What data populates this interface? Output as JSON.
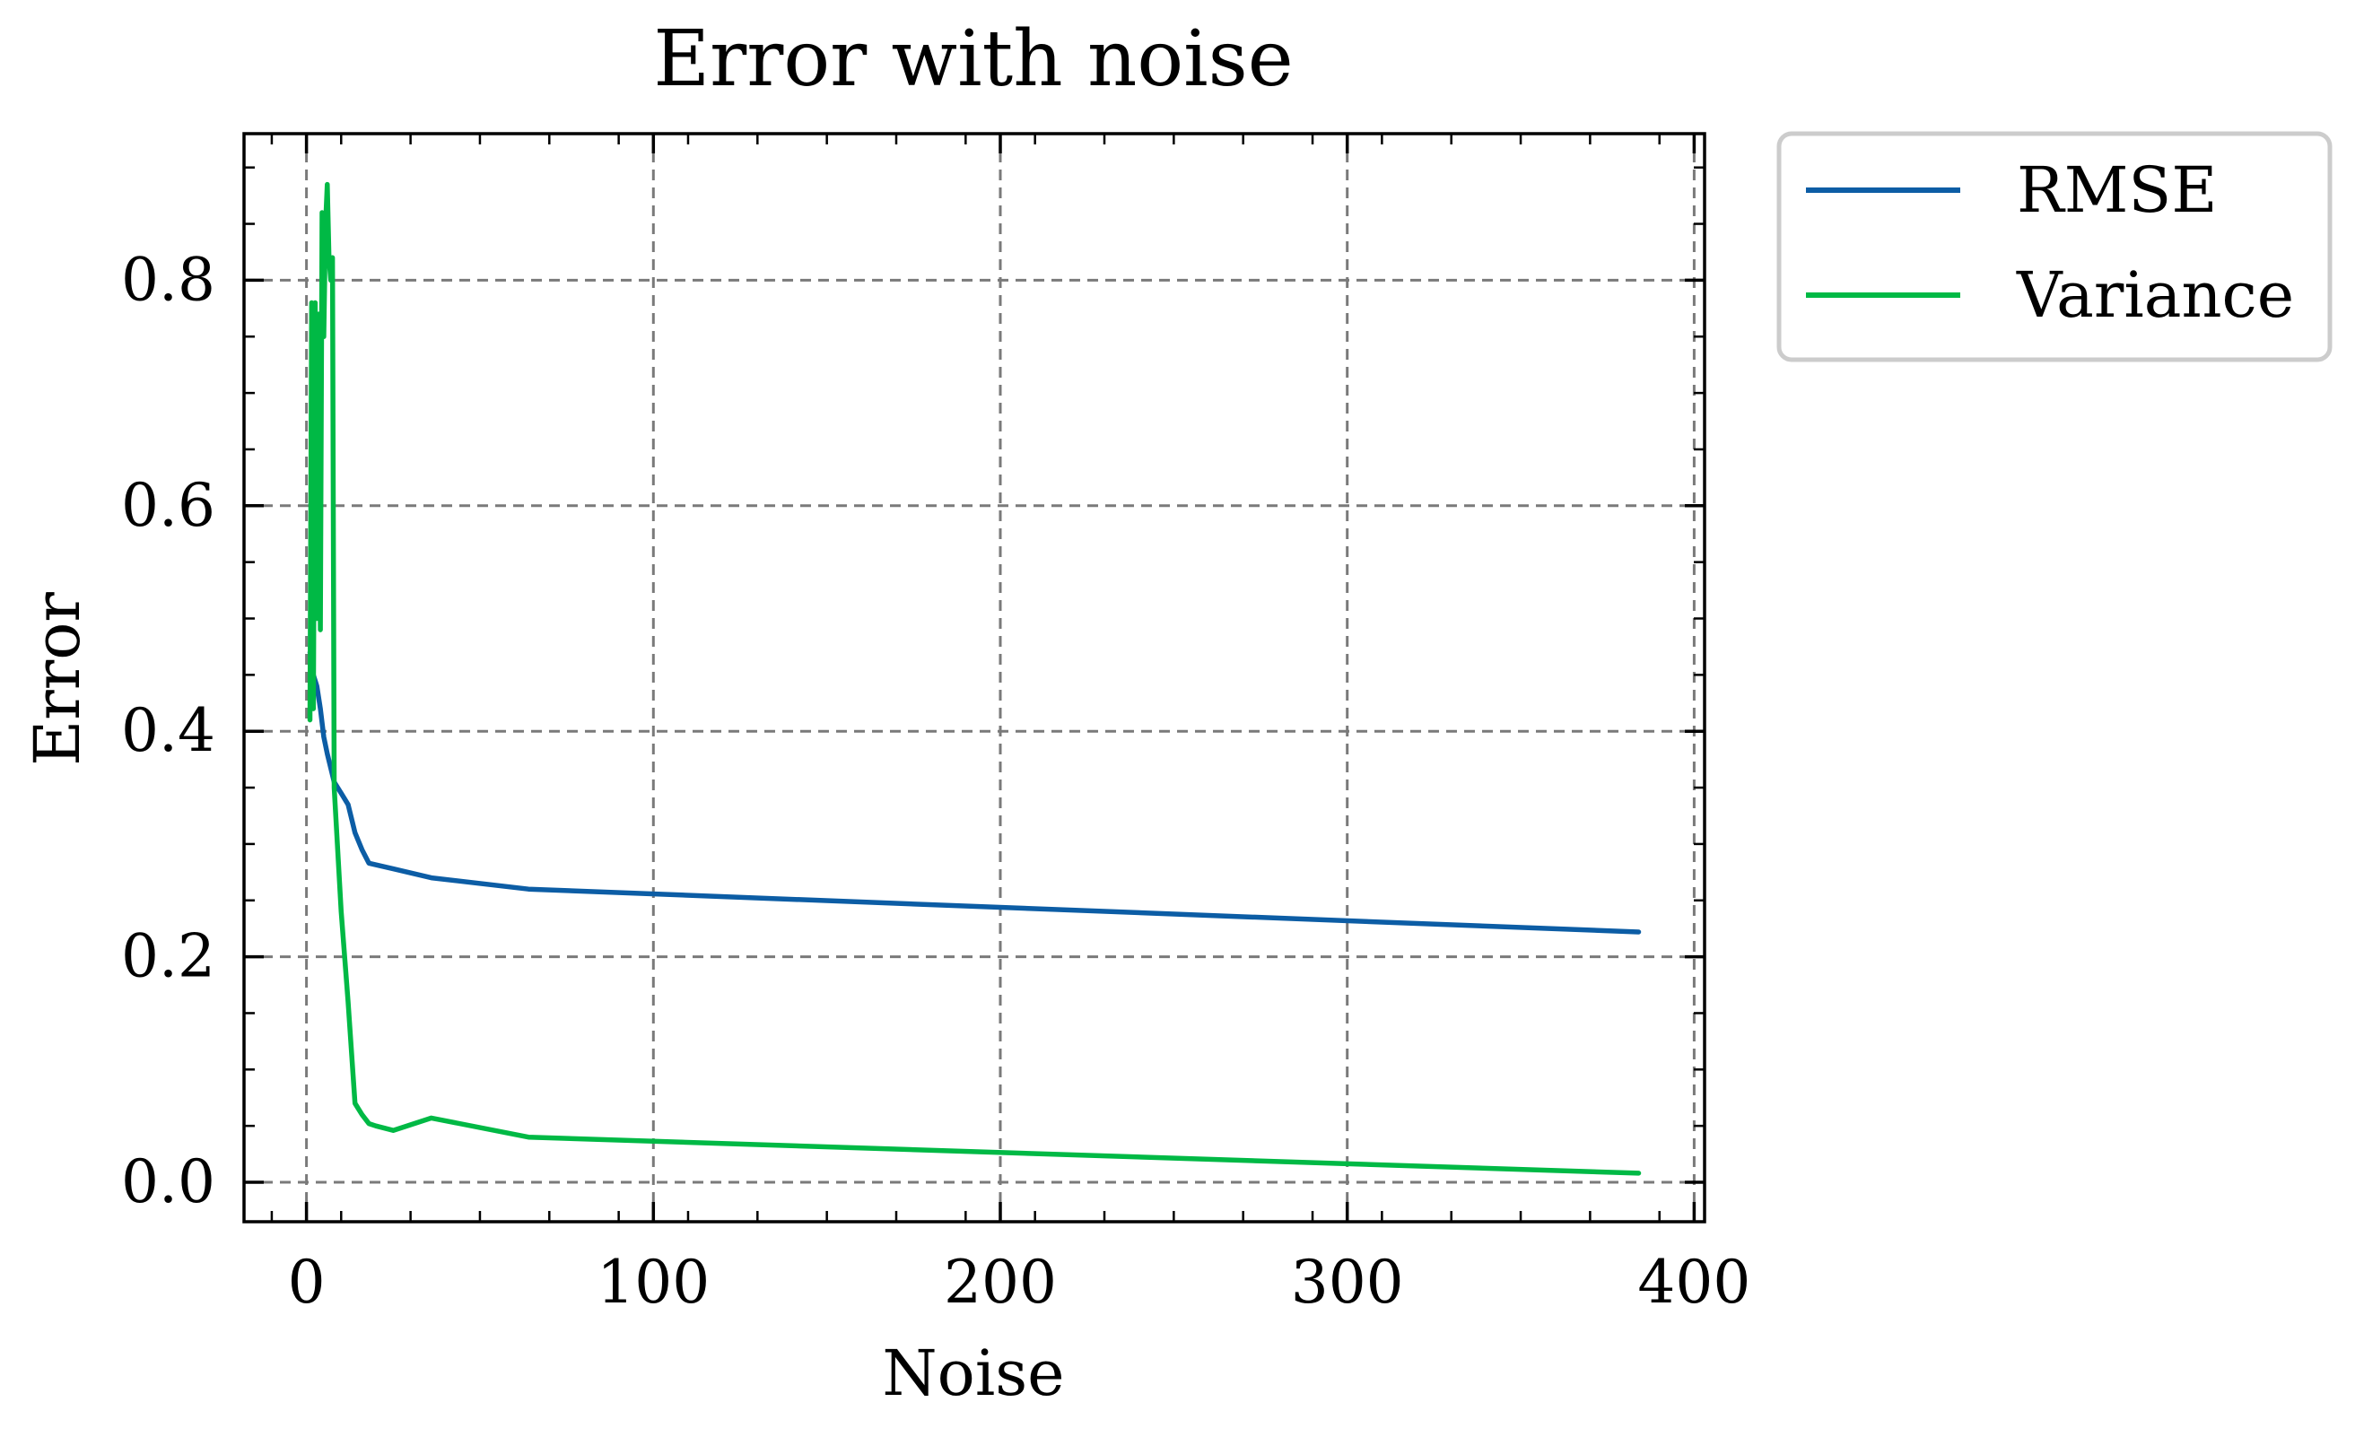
{
  "chart_data": {
    "type": "line",
    "title": "Error with noise",
    "xlabel": "Noise",
    "ylabel": "Error",
    "xlim": [
      -18,
      403
    ],
    "ylim": [
      -0.035,
      0.93
    ],
    "xticks": [
      0,
      100,
      200,
      300,
      400
    ],
    "xtick_labels": [
      "0",
      "100",
      "200",
      "300",
      "400"
    ],
    "yticks": [
      0.0,
      0.2,
      0.4,
      0.6,
      0.8
    ],
    "ytick_labels": [
      "0.0",
      "0.2",
      "0.4",
      "0.6",
      "0.8"
    ],
    "grid": true,
    "legend_position": "outside-upper-right",
    "series": [
      {
        "name": "RMSE",
        "color": "#0C5DA5",
        "x": [
          1,
          2,
          3,
          4,
          5,
          6,
          8,
          10,
          12,
          14,
          16,
          18,
          25,
          36,
          64,
          384
        ],
        "y": [
          0.47,
          0.45,
          0.44,
          0.42,
          0.395,
          0.38,
          0.355,
          0.345,
          0.335,
          0.31,
          0.295,
          0.283,
          0.278,
          0.27,
          0.26,
          0.222
        ]
      },
      {
        "name": "Variance",
        "color": "#00B945",
        "x": [
          1,
          1.5,
          2,
          2.5,
          3,
          3.5,
          4,
          4.5,
          5,
          5.5,
          6,
          6.5,
          7,
          7.5,
          8,
          10,
          12,
          14,
          16,
          18,
          20,
          25,
          36,
          64,
          384
        ],
        "y": [
          0.41,
          0.78,
          0.42,
          0.78,
          0.5,
          0.77,
          0.49,
          0.86,
          0.75,
          0.85,
          0.885,
          0.82,
          0.8,
          0.82,
          0.35,
          0.24,
          0.16,
          0.07,
          0.06,
          0.052,
          0.05,
          0.046,
          0.057,
          0.04,
          0.008
        ]
      }
    ]
  }
}
